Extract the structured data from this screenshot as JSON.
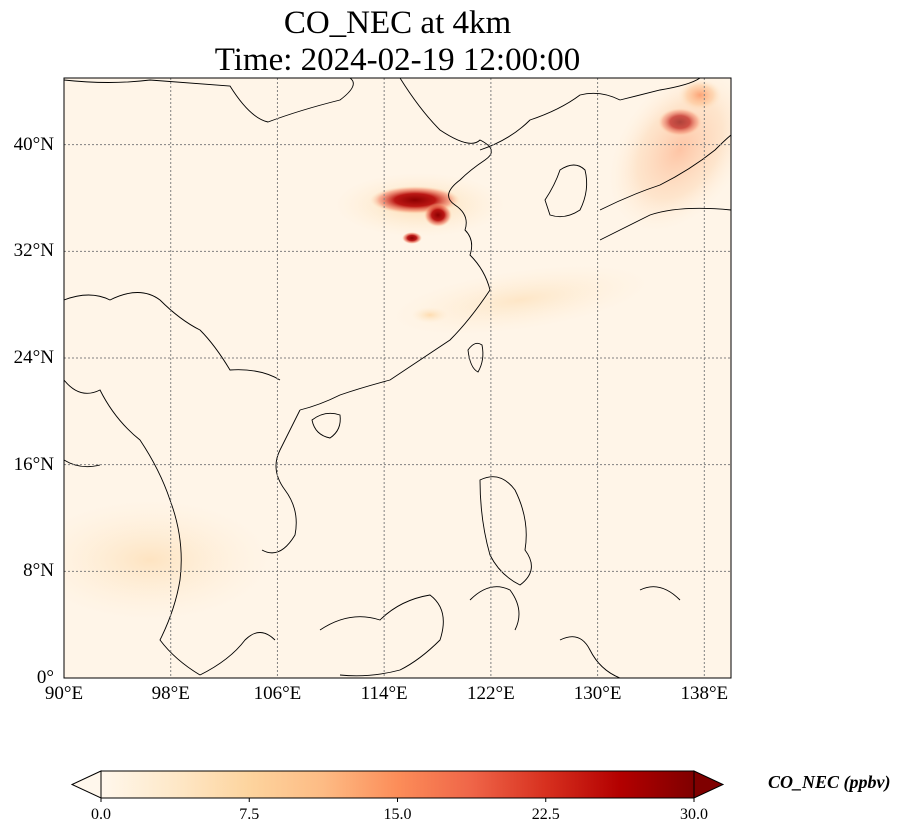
{
  "title": {
    "line1": "CO_NEC at 4km",
    "line2": "Time: 2024-02-19 12:00:00"
  },
  "map": {
    "projection": "PlateCarree",
    "lon_range": [
      90,
      140
    ],
    "lat_range": [
      0,
      45
    ],
    "gridlines": {
      "style": "dotted",
      "color": "#808080"
    },
    "coastline_color": "#000000",
    "lat_ticks": [
      {
        "value": 0,
        "label": "0°"
      },
      {
        "value": 8,
        "label": "8°N"
      },
      {
        "value": 16,
        "label": "16°N"
      },
      {
        "value": 24,
        "label": "24°N"
      },
      {
        "value": 32,
        "label": "32°N"
      },
      {
        "value": 40,
        "label": "40°N"
      }
    ],
    "lon_ticks": [
      {
        "value": 90,
        "label": "90°E"
      },
      {
        "value": 98,
        "label": "98°E"
      },
      {
        "value": 106,
        "label": "106°E"
      },
      {
        "value": 114,
        "label": "114°E"
      },
      {
        "value": 122,
        "label": "122°E"
      },
      {
        "value": 130,
        "label": "130°E"
      },
      {
        "value": 138,
        "label": "138°E"
      }
    ],
    "field_description_hotspots": [
      {
        "lon": 116.5,
        "lat": 36.2,
        "value": 28
      },
      {
        "lon": 117.0,
        "lat": 35.0,
        "value": 25
      },
      {
        "lon": 116.8,
        "lat": 33.8,
        "value": 20
      },
      {
        "lon": 136.0,
        "lat": 41.2,
        "value": 18
      },
      {
        "lon": 137.5,
        "lat": 43.5,
        "value": 12
      }
    ]
  },
  "colorbar": {
    "label": "CO_NEC (ppbv)",
    "colormap": "OrRd",
    "min": 0.0,
    "max": 30.0,
    "extend": "both",
    "stops": [
      "#fff7ec",
      "#fee8c8",
      "#fdd49e",
      "#fdbb84",
      "#fc8d59",
      "#ef6548",
      "#d7301f",
      "#b30000",
      "#7f0000"
    ],
    "ticks": [
      {
        "value": 0.0,
        "label": "0.0"
      },
      {
        "value": 7.5,
        "label": "7.5"
      },
      {
        "value": 15.0,
        "label": "15.0"
      },
      {
        "value": 22.5,
        "label": "22.5"
      },
      {
        "value": 30.0,
        "label": "30.0"
      }
    ]
  }
}
